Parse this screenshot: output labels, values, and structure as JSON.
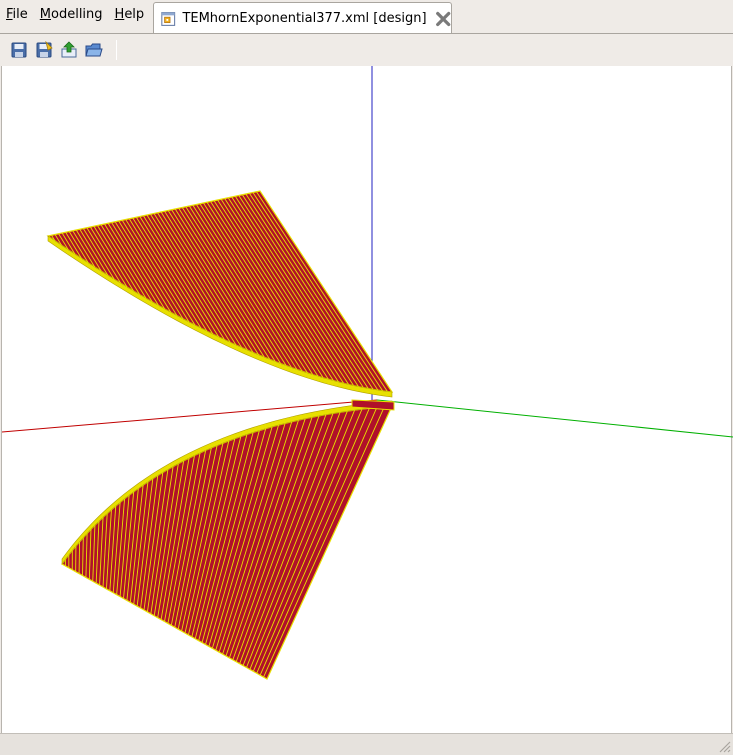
{
  "menu": {
    "items": [
      {
        "key": "F",
        "rest": "ile"
      },
      {
        "key": "M",
        "rest": "odelling"
      },
      {
        "key": "H",
        "rest": "elp"
      }
    ]
  },
  "tab": {
    "title": "TEMhornExponential377.xml [design]"
  },
  "toolbar": {
    "buttons": [
      "save-icon",
      "save-as-icon",
      "export-icon",
      "open-icon"
    ]
  },
  "viewport": {
    "axis_colors": {
      "x": "#c00000",
      "y": "#00b000",
      "z": "#2020c0"
    },
    "horn_face_color": "#b0102a",
    "horn_edge_color": "#e8e000"
  }
}
